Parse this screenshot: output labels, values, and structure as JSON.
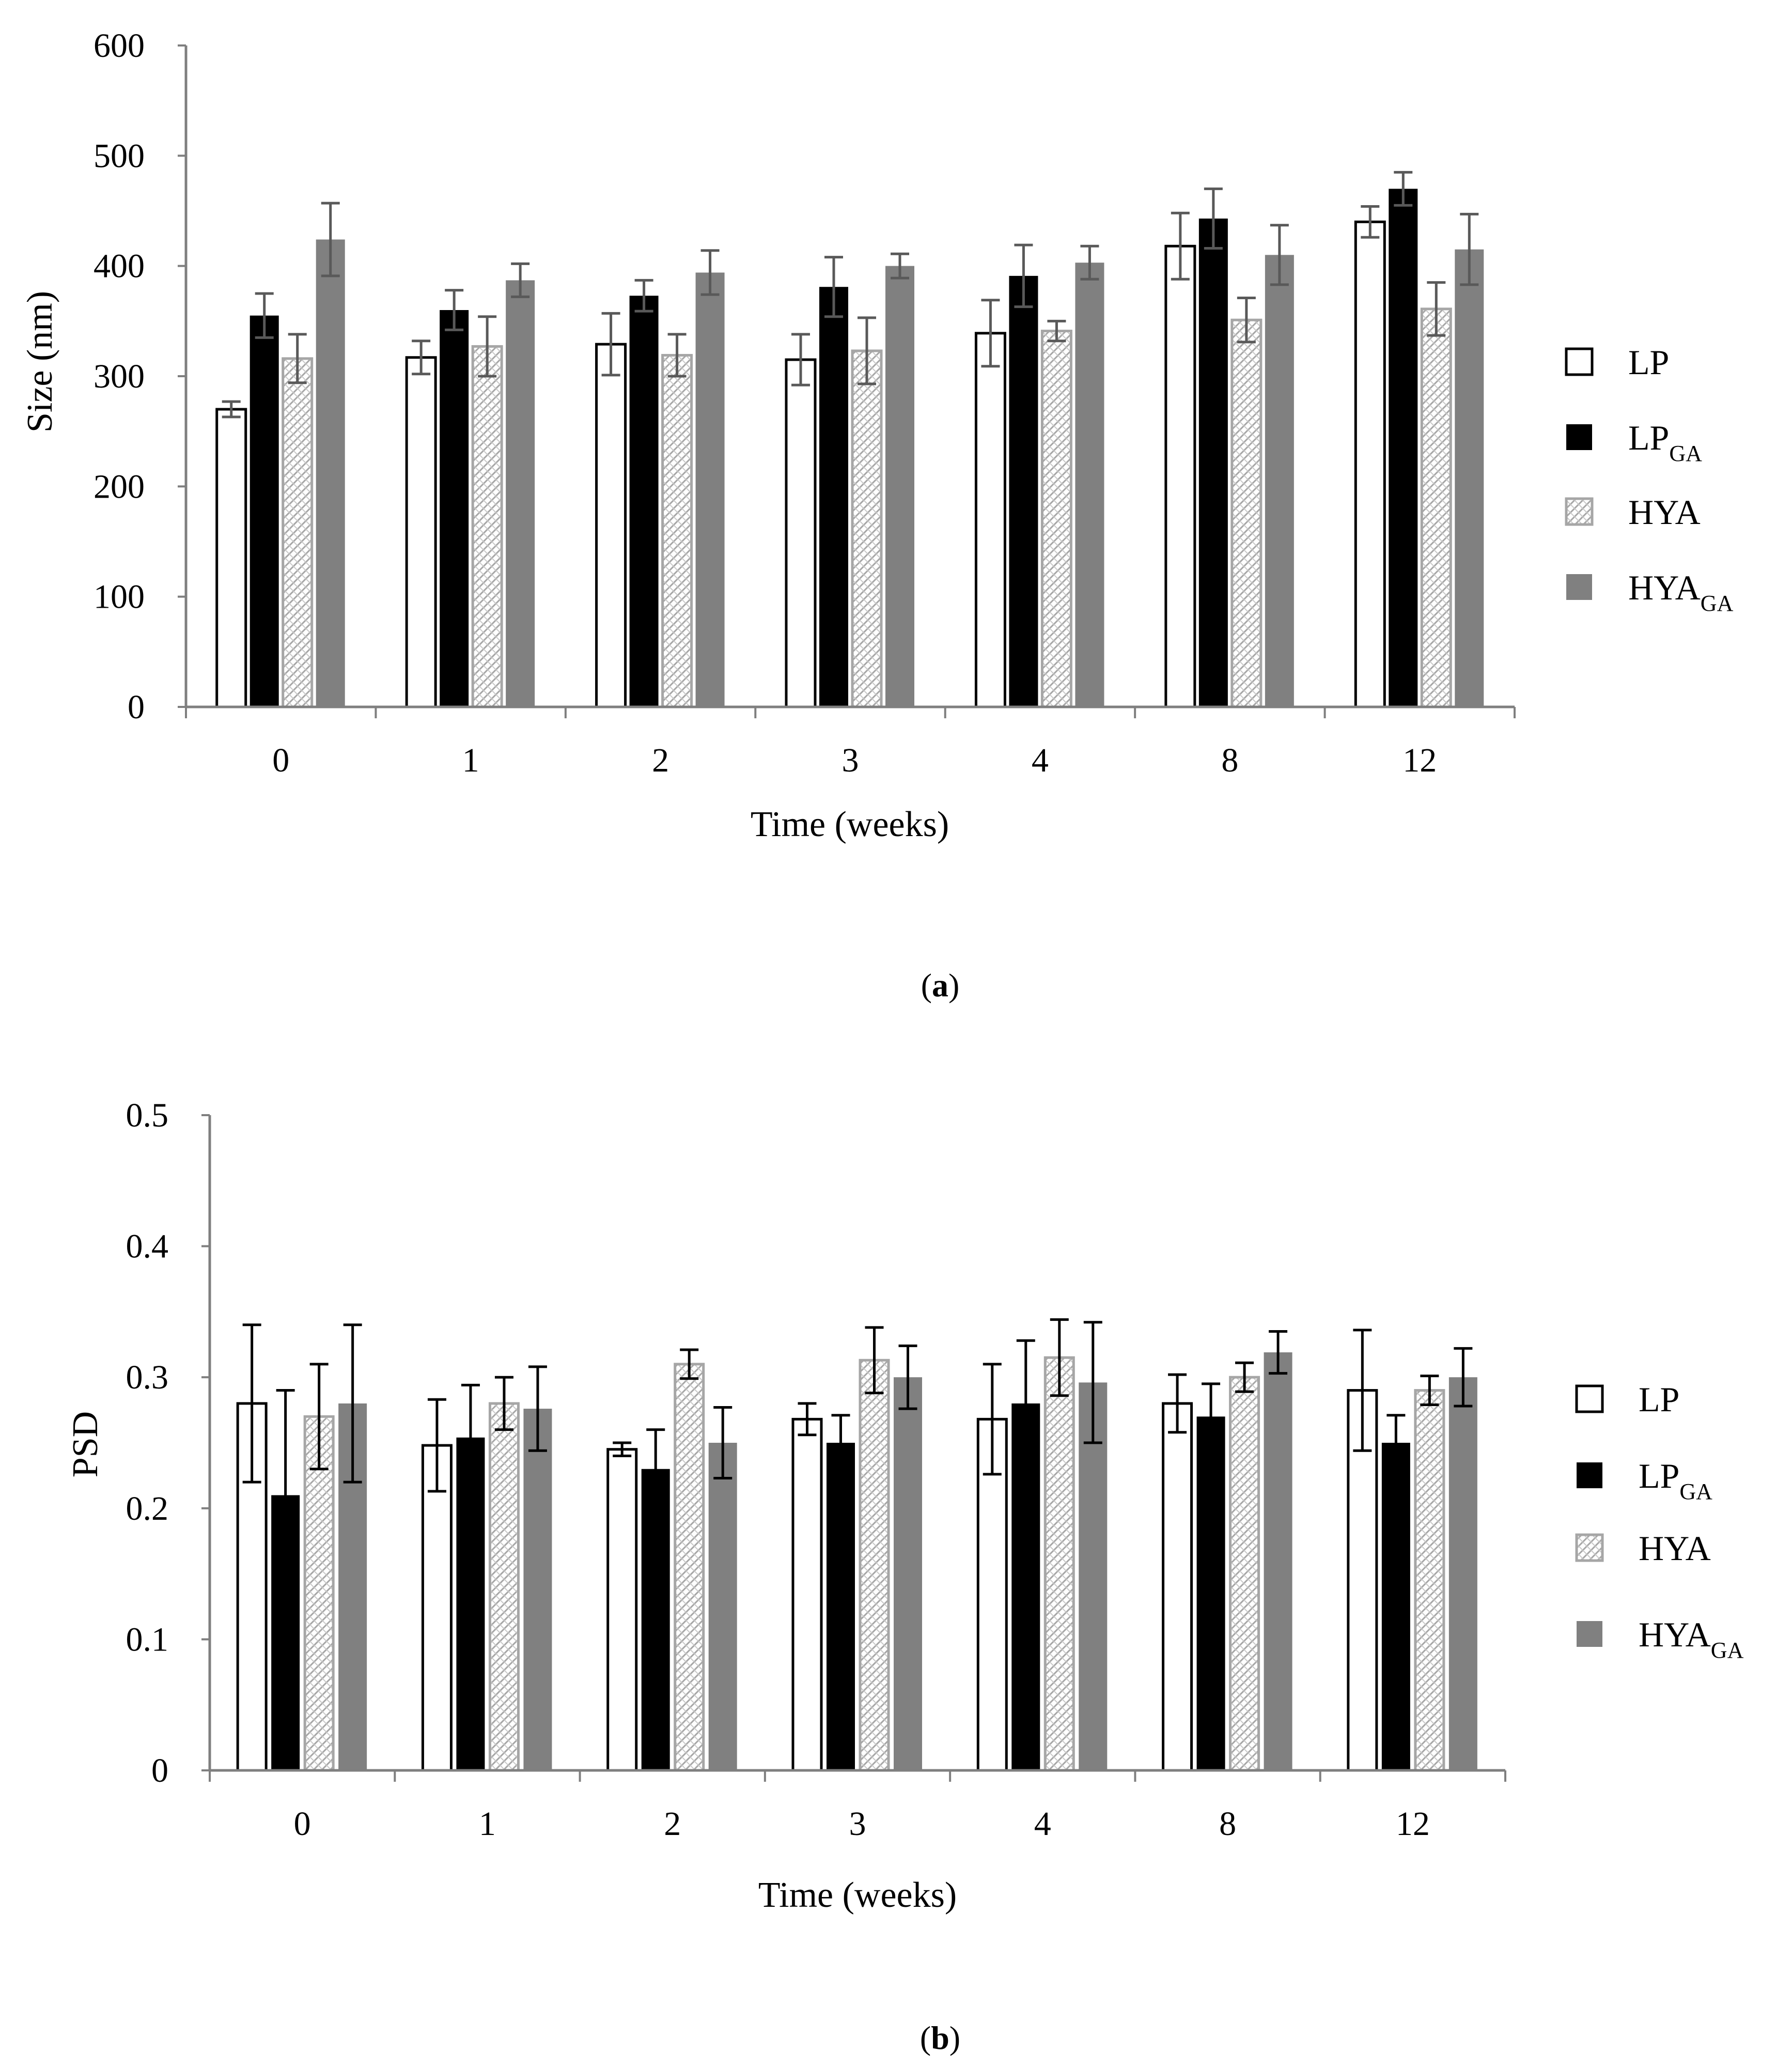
{
  "legend_subscript": "GA",
  "chart_data": [
    {
      "id": "a",
      "type": "bar",
      "panel_label": "a",
      "title": "",
      "xlabel": "Time (weeks)",
      "ylabel": "Size (nm)",
      "ylim": [
        0,
        600
      ],
      "yticks": [
        "0",
        "100",
        "200",
        "300",
        "400",
        "500",
        "600"
      ],
      "categories": [
        "0",
        "1",
        "2",
        "3",
        "4",
        "8",
        "12"
      ],
      "series": [
        {
          "name": "LP",
          "subscript": "",
          "style": "white",
          "values": [
            270,
            317,
            329,
            315,
            339,
            418,
            440
          ],
          "errors": [
            7,
            15,
            28,
            23,
            30,
            30,
            14
          ]
        },
        {
          "name": "LP",
          "subscript": "GA",
          "style": "black",
          "values": [
            355,
            360,
            373,
            381,
            391,
            443,
            470
          ],
          "errors": [
            20,
            18,
            14,
            27,
            28,
            27,
            15
          ]
        },
        {
          "name": "HYA",
          "subscript": "",
          "style": "hatched",
          "values": [
            316,
            327,
            319,
            323,
            341,
            351,
            361
          ],
          "errors": [
            22,
            27,
            19,
            30,
            9,
            20,
            24
          ]
        },
        {
          "name": "HYA",
          "subscript": "GA",
          "style": "gray",
          "values": [
            424,
            387,
            394,
            400,
            403,
            410,
            415
          ],
          "errors": [
            33,
            15,
            20,
            11,
            15,
            27,
            32
          ]
        }
      ],
      "colors": {
        "black": "#000000",
        "gray": "#808080",
        "error": "#595959",
        "hatch": "#a6a6a6"
      }
    },
    {
      "id": "b",
      "type": "bar",
      "panel_label": "b",
      "title": "",
      "xlabel": "Time (weeks)",
      "ylabel": "PSD",
      "ylim": [
        0,
        0.5
      ],
      "yticks": [
        "0",
        "0.1",
        "0.2",
        "0.3",
        "0.4",
        "0.5"
      ],
      "categories": [
        "0",
        "1",
        "2",
        "3",
        "4",
        "8",
        "12"
      ],
      "series": [
        {
          "name": "LP",
          "subscript": "",
          "style": "white",
          "values": [
            0.28,
            0.248,
            0.245,
            0.268,
            0.268,
            0.28,
            0.29
          ],
          "errors": [
            0.06,
            0.035,
            0.005,
            0.012,
            0.042,
            0.022,
            0.046
          ]
        },
        {
          "name": "LP",
          "subscript": "GA",
          "style": "black",
          "values": [
            0.21,
            0.254,
            0.23,
            0.25,
            0.28,
            0.27,
            0.25
          ],
          "errors": [
            0.08,
            0.04,
            0.03,
            0.021,
            0.048,
            0.025,
            0.021
          ]
        },
        {
          "name": "HYA",
          "subscript": "",
          "style": "hatched",
          "values": [
            0.27,
            0.28,
            0.31,
            0.313,
            0.315,
            0.3,
            0.29
          ],
          "errors": [
            0.04,
            0.02,
            0.011,
            0.025,
            0.029,
            0.011,
            0.011
          ]
        },
        {
          "name": "HYA",
          "subscript": "GA",
          "style": "gray",
          "values": [
            0.28,
            0.276,
            0.25,
            0.3,
            0.296,
            0.319,
            0.3
          ],
          "errors": [
            0.06,
            0.032,
            0.027,
            0.024,
            0.046,
            0.016,
            0.022
          ]
        }
      ],
      "colors": {
        "black": "#000000",
        "gray": "#808080",
        "error": "#000000",
        "hatch": "#a6a6a6"
      }
    }
  ]
}
